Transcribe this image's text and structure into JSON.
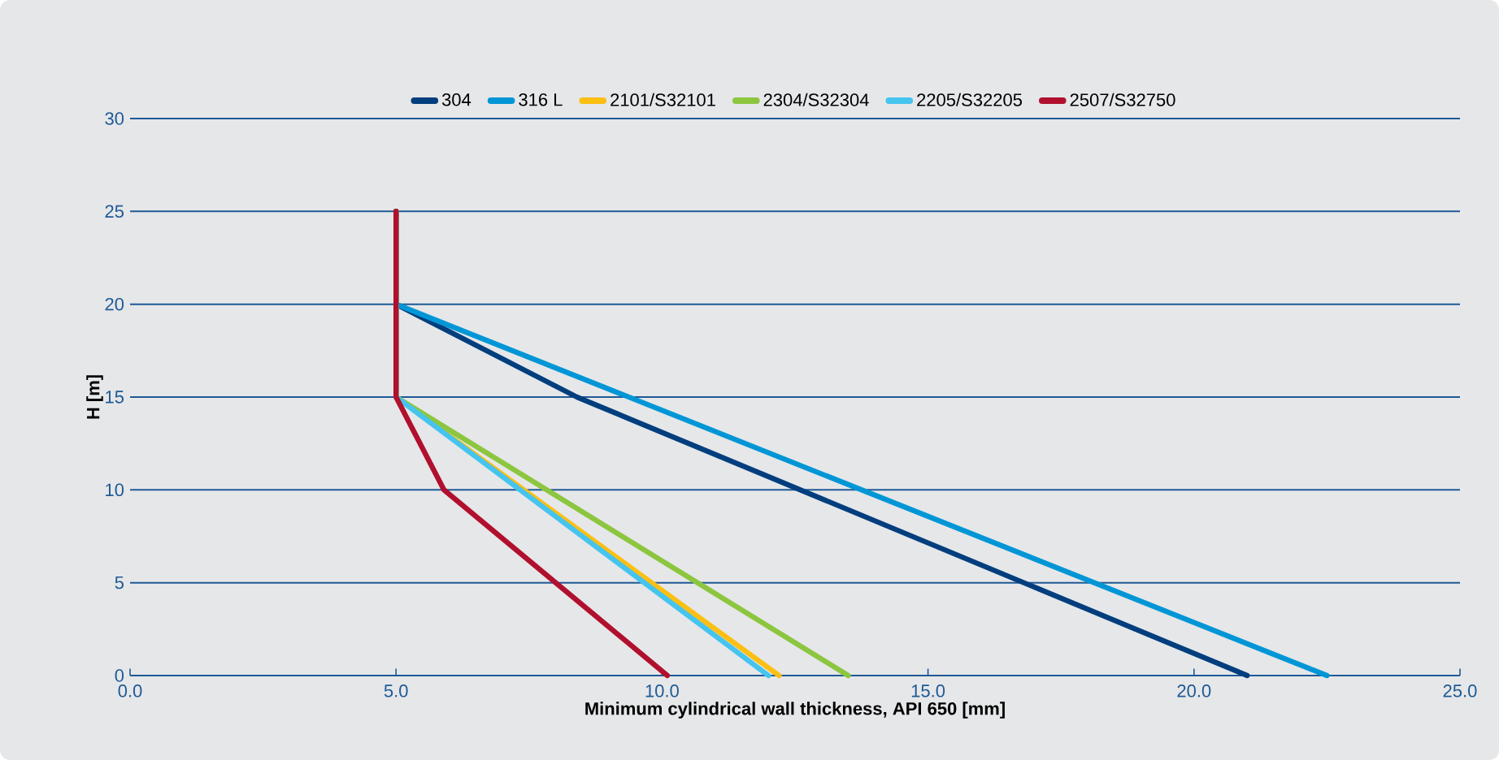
{
  "chart_data": {
    "type": "line",
    "xlabel": "Minimum cylindrical wall thickness, API 650 [mm]",
    "ylabel": "H [m]",
    "xlim": [
      0,
      25
    ],
    "ylim": [
      0,
      30
    ],
    "xticks": [
      {
        "value": 0,
        "label": "0.0"
      },
      {
        "value": 5,
        "label": "5.0"
      },
      {
        "value": 10,
        "label": "10.0"
      },
      {
        "value": 15,
        "label": "15.0"
      },
      {
        "value": 20,
        "label": "20.0"
      },
      {
        "value": 25,
        "label": "25.0"
      }
    ],
    "yticks": [
      0,
      5,
      10,
      15,
      20,
      25,
      30
    ],
    "grid": "y",
    "legend": "top",
    "marker": "none",
    "line_style": "solid",
    "series": [
      {
        "name": "304",
        "color": "#003e7e",
        "x": [
          5,
          5,
          8.4,
          21.0
        ],
        "values": [
          25,
          20,
          15,
          0
        ]
      },
      {
        "name": "316 L",
        "color": "#0096d6",
        "x": [
          5,
          5,
          22.5
        ],
        "values": [
          25,
          20,
          0
        ]
      },
      {
        "name": "2101/S32101",
        "color": "#fcbf12",
        "x": [
          5,
          5,
          12.2
        ],
        "values": [
          25,
          15,
          0
        ]
      },
      {
        "name": "2304/S32304",
        "color": "#8cc63f",
        "x": [
          5,
          5,
          13.5
        ],
        "values": [
          25,
          15,
          0
        ]
      },
      {
        "name": "2205/S32205",
        "color": "#45c4ef",
        "x": [
          5,
          5,
          12.0
        ],
        "values": [
          25,
          15,
          0
        ]
      },
      {
        "name": "2507/S32750",
        "color": "#b0102e",
        "x": [
          5,
          5,
          5.9,
          10.1
        ],
        "values": [
          25,
          15,
          10,
          0
        ]
      }
    ]
  }
}
